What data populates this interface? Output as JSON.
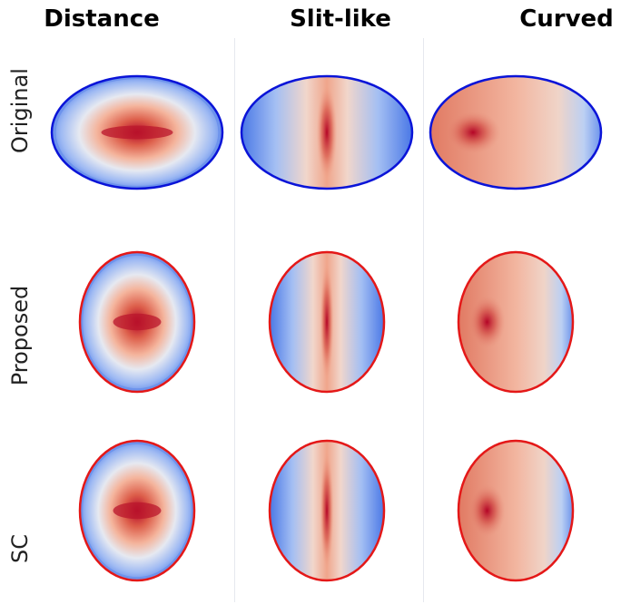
{
  "columns": [
    "Distance",
    "Slit-like",
    "Curved"
  ],
  "rows": [
    "Original",
    "Proposed",
    "SC"
  ],
  "colors": {
    "original_outline": "#0a14d8",
    "reconstruction_outline": "#e41818",
    "colormap_low": "#4a78e6",
    "colormap_mid": "#f2f2f2",
    "colormap_high": "#b40426"
  },
  "panels": [
    {
      "row": "Original",
      "column": "Distance",
      "pattern": "distance",
      "outline": "original_outline"
    },
    {
      "row": "Original",
      "column": "Slit-like",
      "pattern": "slit",
      "outline": "original_outline"
    },
    {
      "row": "Original",
      "column": "Curved",
      "pattern": "curved",
      "outline": "original_outline"
    },
    {
      "row": "Proposed",
      "column": "Distance",
      "pattern": "distance",
      "outline": "reconstruction_outline"
    },
    {
      "row": "Proposed",
      "column": "Slit-like",
      "pattern": "slit",
      "outline": "reconstruction_outline"
    },
    {
      "row": "Proposed",
      "column": "Curved",
      "pattern": "curved",
      "outline": "reconstruction_outline"
    },
    {
      "row": "SC",
      "column": "Distance",
      "pattern": "distance",
      "outline": "reconstruction_outline"
    },
    {
      "row": "SC",
      "column": "Slit-like",
      "pattern": "slit",
      "outline": "reconstruction_outline"
    },
    {
      "row": "SC",
      "column": "Curved",
      "pattern": "curved",
      "outline": "reconstruction_outline"
    }
  ]
}
